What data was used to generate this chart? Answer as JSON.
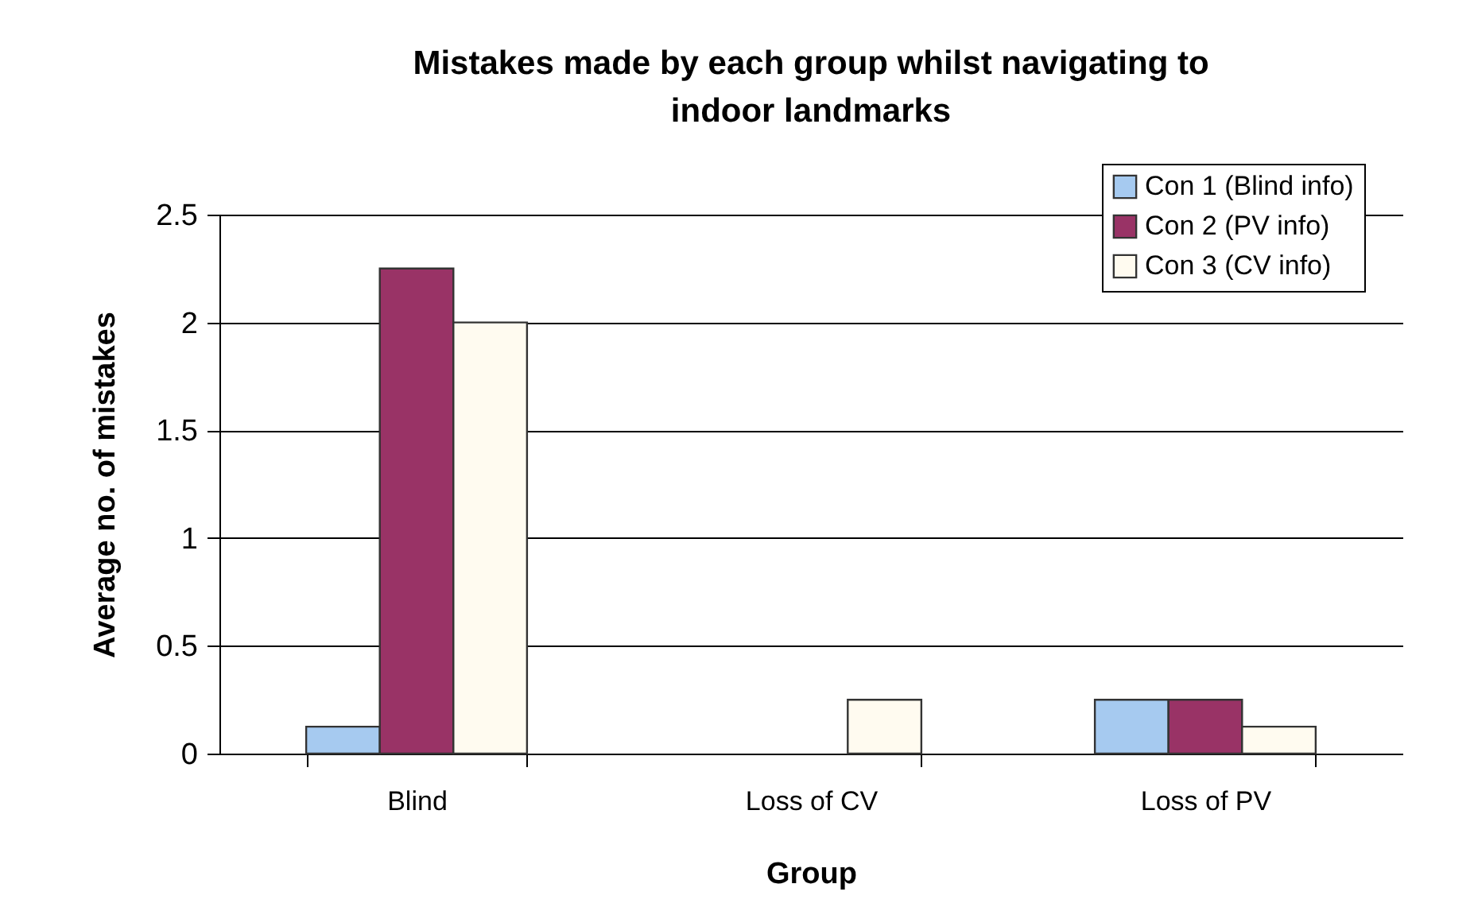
{
  "chart_data": {
    "type": "bar",
    "title": "Mistakes made by each group whilst navigating to indoor landmarks",
    "xlabel": "Group",
    "ylabel": "Average no. of mistakes",
    "categories": [
      "Blind",
      "Loss of CV",
      "Loss of PV"
    ],
    "series": [
      {
        "name": "Con 1 (Blind info)",
        "color": "#a6caf0",
        "values": [
          0.125,
          null,
          0.25
        ]
      },
      {
        "name": "Con 2 (PV info)",
        "color": "#993366",
        "values": [
          2.25,
          null,
          0.25
        ]
      },
      {
        "name": "Con 3 (CV info)",
        "color": "#fffbf0",
        "values": [
          2,
          0.25,
          0.125
        ]
      }
    ],
    "ylim": [
      0,
      2.5
    ],
    "yticks": [
      0,
      0.5,
      1,
      1.5,
      2,
      2.5
    ],
    "grid": "y",
    "legend": "top right"
  }
}
